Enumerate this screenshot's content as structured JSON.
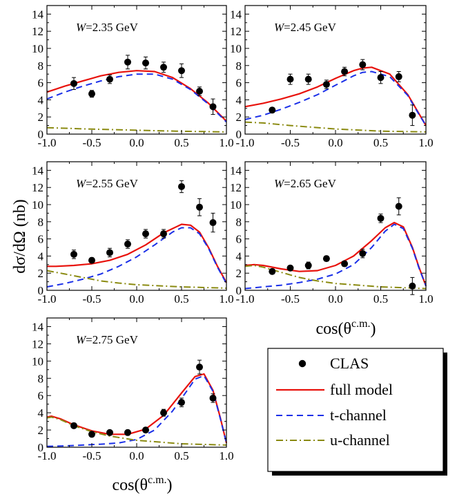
{
  "figure": {
    "ylabel": "dσ/dΩ (nb)",
    "xlabel_main": "cos(θ",
    "xlabel_sup": "c.m.",
    "xlabel_close": ")"
  },
  "legend": {
    "entries": [
      {
        "key": "data",
        "label": "CLAS"
      },
      {
        "key": "full",
        "label": "full model"
      },
      {
        "key": "t",
        "label": "t-channel"
      },
      {
        "key": "u",
        "label": "u-channel"
      }
    ]
  },
  "colors": {
    "data": "#000000",
    "full": "#e8120c",
    "t": "#1a2fe8",
    "u": "#8a8a10"
  },
  "chart_data": [
    {
      "type": "line",
      "label_var": "W",
      "label_rest": "=2.35 GeV",
      "xlim": [
        -1.0,
        1.0
      ],
      "ylim": [
        0,
        15
      ],
      "xticks": [
        "-1.0",
        "-0.5",
        "0.0",
        "0.5",
        "1.0"
      ],
      "yticks": [
        "0",
        "2",
        "4",
        "6",
        "8",
        "10",
        "12",
        "14"
      ],
      "data_points": [
        {
          "x": -0.7,
          "y": 5.9,
          "err": 0.7
        },
        {
          "x": -0.5,
          "y": 4.7,
          "err": 0.4
        },
        {
          "x": -0.3,
          "y": 6.4,
          "err": 0.5
        },
        {
          "x": -0.1,
          "y": 8.4,
          "err": 0.8
        },
        {
          "x": 0.1,
          "y": 8.3,
          "err": 0.7
        },
        {
          "x": 0.3,
          "y": 7.8,
          "err": 0.6
        },
        {
          "x": 0.5,
          "y": 7.4,
          "err": 0.8
        },
        {
          "x": 0.7,
          "y": 5.0,
          "err": 0.5
        },
        {
          "x": 0.85,
          "y": 3.2,
          "err": 0.9
        }
      ],
      "series": [
        {
          "key": "full",
          "x": [
            -1.0,
            -0.8,
            -0.6,
            -0.4,
            -0.2,
            0.0,
            0.2,
            0.4,
            0.6,
            0.8,
            1.0
          ],
          "y": [
            4.9,
            5.6,
            6.2,
            6.8,
            7.2,
            7.4,
            7.3,
            6.6,
            5.3,
            3.6,
            1.5
          ]
        },
        {
          "key": "t",
          "x": [
            -1.0,
            -0.8,
            -0.6,
            -0.4,
            -0.2,
            0.0,
            0.2,
            0.4,
            0.6,
            0.8,
            1.0
          ],
          "y": [
            4.1,
            4.9,
            5.6,
            6.2,
            6.7,
            7.0,
            7.0,
            6.4,
            5.2,
            3.5,
            1.4
          ]
        },
        {
          "key": "u",
          "x": [
            -1.0,
            -0.5,
            0.0,
            0.5,
            1.0
          ],
          "y": [
            0.75,
            0.58,
            0.45,
            0.33,
            0.25
          ]
        }
      ]
    },
    {
      "type": "line",
      "label_var": "W",
      "label_rest": "=2.45 GeV",
      "xlim": [
        -1.0,
        1.0
      ],
      "ylim": [
        0,
        15
      ],
      "xticks": [
        "-1.0",
        "-0.5",
        "0.0",
        "0.5",
        "1.0"
      ],
      "yticks": [
        "0",
        "2",
        "4",
        "6",
        "8",
        "10",
        "12",
        "14"
      ],
      "data_points": [
        {
          "x": -0.7,
          "y": 2.8,
          "err": 0.3
        },
        {
          "x": -0.5,
          "y": 6.4,
          "err": 0.6
        },
        {
          "x": -0.3,
          "y": 6.4,
          "err": 0.6
        },
        {
          "x": -0.1,
          "y": 5.8,
          "err": 0.5
        },
        {
          "x": 0.1,
          "y": 7.3,
          "err": 0.5
        },
        {
          "x": 0.3,
          "y": 8.1,
          "err": 0.6
        },
        {
          "x": 0.5,
          "y": 6.6,
          "err": 0.7
        },
        {
          "x": 0.7,
          "y": 6.7,
          "err": 0.6
        },
        {
          "x": 0.85,
          "y": 2.2,
          "err": 1.2
        }
      ],
      "series": [
        {
          "key": "full",
          "x": [
            -1.0,
            -0.8,
            -0.6,
            -0.4,
            -0.2,
            0.0,
            0.2,
            0.3,
            0.4,
            0.6,
            0.8,
            0.9,
            1.0
          ],
          "y": [
            3.2,
            3.6,
            4.1,
            4.7,
            5.5,
            6.5,
            7.4,
            7.7,
            7.8,
            7.0,
            4.6,
            2.8,
            1.0
          ]
        },
        {
          "key": "t",
          "x": [
            -1.0,
            -0.8,
            -0.6,
            -0.4,
            -0.2,
            0.0,
            0.2,
            0.3,
            0.4,
            0.6,
            0.8,
            0.9,
            1.0
          ],
          "y": [
            1.7,
            2.2,
            2.9,
            3.7,
            4.6,
            5.7,
            6.8,
            7.2,
            7.3,
            6.7,
            4.5,
            2.7,
            1.0
          ]
        },
        {
          "key": "u",
          "x": [
            -1.0,
            -0.8,
            -0.5,
            0.0,
            0.5,
            1.0
          ],
          "y": [
            1.4,
            1.3,
            1.0,
            0.6,
            0.35,
            0.25
          ]
        }
      ]
    },
    {
      "type": "line",
      "label_var": "W",
      "label_rest": "=2.55 GeV",
      "xlim": [
        -1.0,
        1.0
      ],
      "ylim": [
        0,
        15
      ],
      "xticks": [
        "-1.0",
        "-0.5",
        "0.0",
        "0.5",
        "1.0"
      ],
      "yticks": [
        "0",
        "2",
        "4",
        "6",
        "8",
        "10",
        "12",
        "14"
      ],
      "data_points": [
        {
          "x": -0.7,
          "y": 4.2,
          "err": 0.5
        },
        {
          "x": -0.5,
          "y": 3.5,
          "err": 0.3
        },
        {
          "x": -0.3,
          "y": 4.4,
          "err": 0.5
        },
        {
          "x": -0.1,
          "y": 5.4,
          "err": 0.5
        },
        {
          "x": 0.1,
          "y": 6.6,
          "err": 0.5
        },
        {
          "x": 0.3,
          "y": 6.6,
          "err": 0.5
        },
        {
          "x": 0.5,
          "y": 12.1,
          "err": 0.7
        },
        {
          "x": 0.7,
          "y": 9.7,
          "err": 1.0
        },
        {
          "x": 0.85,
          "y": 7.9,
          "err": 1.1
        }
      ],
      "series": [
        {
          "key": "full",
          "x": [
            -1.0,
            -0.9,
            -0.7,
            -0.5,
            -0.3,
            -0.1,
            0.1,
            0.3,
            0.5,
            0.6,
            0.7,
            0.8,
            0.9,
            1.0
          ],
          "y": [
            2.8,
            2.8,
            2.9,
            3.1,
            3.5,
            4.2,
            5.3,
            6.7,
            7.7,
            7.6,
            6.8,
            5.0,
            2.8,
            0.9
          ]
        },
        {
          "key": "t",
          "x": [
            -1.0,
            -0.8,
            -0.6,
            -0.4,
            -0.2,
            0.0,
            0.2,
            0.4,
            0.5,
            0.6,
            0.7,
            0.8,
            0.9,
            1.0
          ],
          "y": [
            0.4,
            0.8,
            1.3,
            1.9,
            2.8,
            3.9,
            5.3,
            6.8,
            7.3,
            7.3,
            6.6,
            4.9,
            2.7,
            0.8
          ]
        },
        {
          "key": "u",
          "x": [
            -1.0,
            -0.8,
            -0.6,
            -0.4,
            -0.2,
            0.0,
            0.5,
            1.0
          ],
          "y": [
            2.3,
            1.9,
            1.5,
            1.1,
            0.85,
            0.65,
            0.4,
            0.25
          ]
        }
      ]
    },
    {
      "type": "line",
      "label_var": "W",
      "label_rest": "=2.65 GeV",
      "xlim": [
        -1.0,
        1.0
      ],
      "ylim": [
        0,
        15
      ],
      "xticks": [
        "-1.0",
        "-0.5",
        "0.0",
        "0.5",
        "1.0"
      ],
      "yticks": [
        "0",
        "2",
        "4",
        "6",
        "8",
        "10",
        "12",
        "14"
      ],
      "data_points": [
        {
          "x": -0.7,
          "y": 2.2,
          "err": 0.3
        },
        {
          "x": -0.5,
          "y": 2.6,
          "err": 0.3
        },
        {
          "x": -0.3,
          "y": 2.9,
          "err": 0.4
        },
        {
          "x": -0.1,
          "y": 3.7,
          "err": 0.3
        },
        {
          "x": 0.1,
          "y": 3.1,
          "err": 0.3
        },
        {
          "x": 0.3,
          "y": 4.3,
          "err": 0.5
        },
        {
          "x": 0.5,
          "y": 8.4,
          "err": 0.5
        },
        {
          "x": 0.7,
          "y": 9.8,
          "err": 1.0
        },
        {
          "x": 0.85,
          "y": 0.5,
          "err": 1.0
        }
      ],
      "series": [
        {
          "key": "full",
          "x": [
            -1.0,
            -0.9,
            -0.8,
            -0.6,
            -0.4,
            -0.2,
            0.0,
            0.2,
            0.4,
            0.55,
            0.65,
            0.75,
            0.85,
            0.92,
            1.0
          ],
          "y": [
            2.9,
            3.0,
            2.9,
            2.5,
            2.2,
            2.3,
            2.9,
            4.0,
            5.8,
            7.3,
            7.9,
            7.4,
            5.0,
            2.8,
            0.5
          ]
        },
        {
          "key": "t",
          "x": [
            -1.0,
            -0.8,
            -0.6,
            -0.4,
            -0.2,
            0.0,
            0.2,
            0.4,
            0.55,
            0.65,
            0.75,
            0.85,
            0.92,
            1.0
          ],
          "y": [
            0.2,
            0.4,
            0.6,
            0.9,
            1.3,
            1.9,
            3.0,
            5.0,
            6.9,
            7.7,
            7.2,
            4.9,
            2.7,
            0.5
          ]
        },
        {
          "key": "u",
          "x": [
            -1.0,
            -0.9,
            -0.8,
            -0.6,
            -0.4,
            -0.2,
            0.0,
            0.5,
            1.0
          ],
          "y": [
            2.8,
            2.9,
            2.7,
            2.1,
            1.5,
            1.1,
            0.8,
            0.4,
            0.2
          ]
        }
      ]
    },
    {
      "type": "line",
      "label_var": "W",
      "label_rest": "=2.75 GeV",
      "xlim": [
        -1.0,
        1.0
      ],
      "ylim": [
        0,
        15
      ],
      "xticks": [
        "-1.0",
        "-0.5",
        "0.0",
        "0.5",
        "1.0"
      ],
      "yticks": [
        "0",
        "2",
        "4",
        "6",
        "8",
        "10",
        "12",
        "14"
      ],
      "data_points": [
        {
          "x": -0.7,
          "y": 2.5,
          "err": 0.3
        },
        {
          "x": -0.5,
          "y": 1.5,
          "err": 0.2
        },
        {
          "x": -0.3,
          "y": 1.7,
          "err": 0.2
        },
        {
          "x": -0.1,
          "y": 1.7,
          "err": 0.3
        },
        {
          "x": 0.1,
          "y": 2.0,
          "err": 0.2
        },
        {
          "x": 0.3,
          "y": 4.0,
          "err": 0.4
        },
        {
          "x": 0.5,
          "y": 5.2,
          "err": 0.5
        },
        {
          "x": 0.7,
          "y": 9.3,
          "err": 0.8
        },
        {
          "x": 0.85,
          "y": 5.7,
          "err": 0.5
        }
      ],
      "series": [
        {
          "key": "full",
          "x": [
            -1.0,
            -0.95,
            -0.85,
            -0.7,
            -0.5,
            -0.3,
            -0.1,
            0.1,
            0.3,
            0.5,
            0.65,
            0.75,
            0.85,
            0.93,
            1.0
          ],
          "y": [
            3.5,
            3.6,
            3.3,
            2.6,
            1.9,
            1.5,
            1.5,
            2.1,
            3.7,
            6.3,
            8.2,
            8.5,
            6.6,
            3.5,
            0.5
          ]
        },
        {
          "key": "t",
          "x": [
            -1.0,
            -0.8,
            -0.6,
            -0.4,
            -0.2,
            0.0,
            0.2,
            0.4,
            0.55,
            0.65,
            0.75,
            0.85,
            0.93,
            1.0
          ],
          "y": [
            0.1,
            0.15,
            0.25,
            0.35,
            0.5,
            0.9,
            2.0,
            4.2,
            6.4,
            7.9,
            8.3,
            6.5,
            3.4,
            0.5
          ]
        },
        {
          "key": "u",
          "x": [
            -1.0,
            -0.95,
            -0.85,
            -0.7,
            -0.5,
            -0.3,
            0.0,
            0.5,
            1.0
          ],
          "y": [
            3.4,
            3.5,
            3.2,
            2.5,
            1.8,
            1.3,
            0.8,
            0.4,
            0.25
          ]
        }
      ]
    }
  ]
}
